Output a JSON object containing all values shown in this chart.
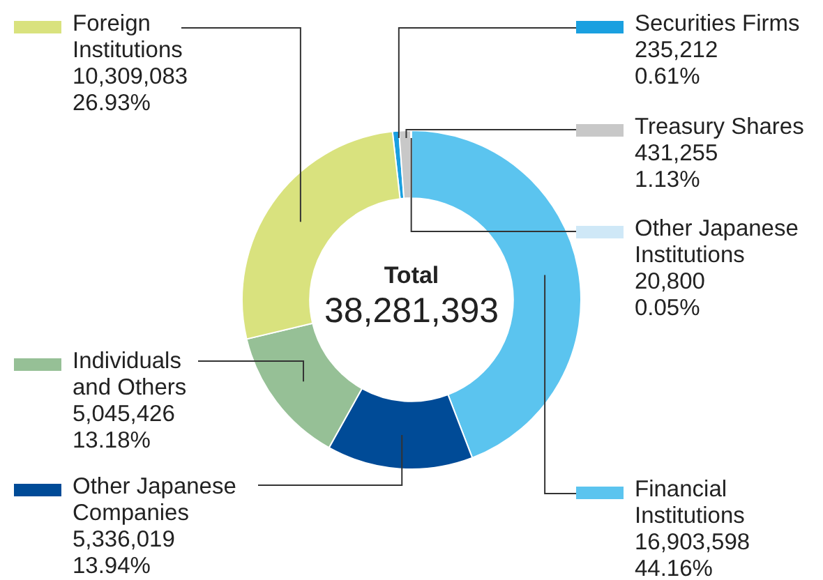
{
  "chart_data": {
    "type": "donut",
    "categories": [
      "Securities Firms",
      "Treasury Shares",
      "Other Japanese Institutions",
      "Financial Institutions",
      "Other Japanese Companies",
      "Individuals and Others",
      "Foreign Institutions"
    ],
    "values": [
      235212,
      431255,
      20800,
      16903598,
      5336019,
      5045426,
      10309083
    ],
    "value_labels": [
      "235,212\n0.61%",
      "431,255\n1.13%",
      "20,800\n0.05%",
      "16,903,598\n44.16%",
      "5,336,019\n13.94%",
      "5,045,426\n13.18%",
      "10,309,083\n26.93%"
    ],
    "colors": [
      "#1aa0e0",
      "#c8c8c8",
      "#cfe8f7",
      "#5bc4ef",
      "#004b97",
      "#96c096",
      "#d9e27e"
    ],
    "annotations": [
      "Total",
      "38,281,393"
    ],
    "legend": "right"
  }
}
